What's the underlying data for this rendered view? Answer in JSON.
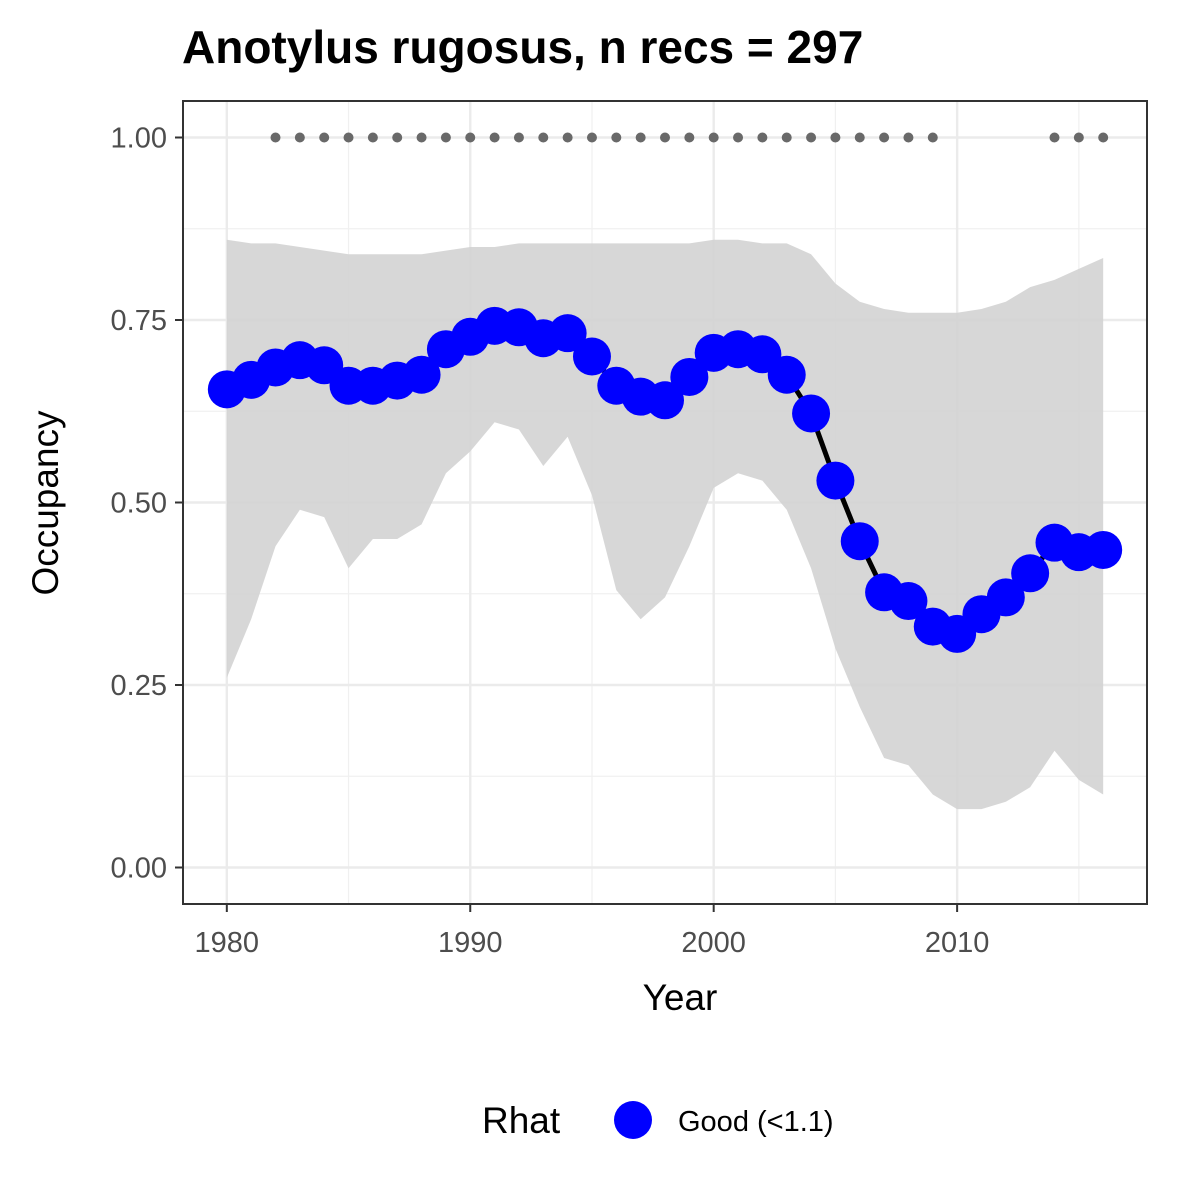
{
  "chart_data": {
    "type": "line",
    "title": "Anotylus rugosus, n recs = 297",
    "xlabel": "Year",
    "ylabel": "Occupancy",
    "xlim": [
      1978.2,
      2017.8
    ],
    "ylim": [
      -0.05,
      1.05
    ],
    "x_ticks": [
      1980,
      1990,
      2000,
      2010
    ],
    "x_tick_labels": [
      "1980",
      "1990",
      "2000",
      "2010"
    ],
    "y_ticks": [
      0,
      0.25,
      0.5,
      0.75,
      1.0
    ],
    "y_tick_labels": [
      "0.00",
      "0.25",
      "0.50",
      "0.75",
      "1.00"
    ],
    "grid": true,
    "x": [
      1980,
      1981,
      1982,
      1983,
      1984,
      1985,
      1986,
      1987,
      1988,
      1989,
      1990,
      1991,
      1992,
      1993,
      1994,
      1995,
      1996,
      1997,
      1998,
      1999,
      2000,
      2001,
      2002,
      2003,
      2004,
      2005,
      2006,
      2007,
      2008,
      2009,
      2010,
      2011,
      2012,
      2013,
      2014,
      2015,
      2016
    ],
    "series": [
      {
        "type": "ribbon",
        "lower": [
          0.26,
          0.34,
          0.44,
          0.49,
          0.48,
          0.41,
          0.45,
          0.45,
          0.47,
          0.54,
          0.57,
          0.61,
          0.6,
          0.55,
          0.59,
          0.51,
          0.38,
          0.34,
          0.37,
          0.44,
          0.52,
          0.54,
          0.53,
          0.49,
          0.41,
          0.3,
          0.22,
          0.15,
          0.14,
          0.1,
          0.08,
          0.08,
          0.09,
          0.11,
          0.16,
          0.12,
          0.1
        ],
        "upper": [
          0.86,
          0.855,
          0.855,
          0.85,
          0.845,
          0.84,
          0.84,
          0.84,
          0.84,
          0.845,
          0.85,
          0.85,
          0.855,
          0.855,
          0.855,
          0.855,
          0.855,
          0.855,
          0.855,
          0.855,
          0.86,
          0.86,
          0.855,
          0.855,
          0.84,
          0.8,
          0.775,
          0.765,
          0.76,
          0.76,
          0.76,
          0.765,
          0.775,
          0.795,
          0.805,
          0.82,
          0.835
        ],
        "color": "#d3d3d3"
      },
      {
        "type": "line",
        "values": [
          0.655,
          0.668,
          0.685,
          0.695,
          0.688,
          0.66,
          0.66,
          0.667,
          0.675,
          0.71,
          0.727,
          0.742,
          0.74,
          0.725,
          0.732,
          0.7,
          0.66,
          0.645,
          0.64,
          0.672,
          0.705,
          0.71,
          0.703,
          0.675,
          0.622,
          0.53,
          0.447,
          0.377,
          0.365,
          0.33,
          0.32,
          0.347,
          0.37,
          0.403,
          0.445,
          0.432,
          0.435
        ],
        "line_color": "#000000",
        "point_color": "#0000ff",
        "name": "Good (<1.1)"
      },
      {
        "type": "points",
        "x": [
          1982,
          1983,
          1984,
          1985,
          1986,
          1987,
          1988,
          1989,
          1990,
          1991,
          1992,
          1993,
          1994,
          1995,
          1996,
          1997,
          1998,
          1999,
          2000,
          2001,
          2002,
          2003,
          2004,
          2005,
          2006,
          2007,
          2008,
          2009,
          2014,
          2015,
          2016
        ],
        "values": [
          1,
          1,
          1,
          1,
          1,
          1,
          1,
          1,
          1,
          1,
          1,
          1,
          1,
          1,
          1,
          1,
          1,
          1,
          1,
          1,
          1,
          1,
          1,
          1,
          1,
          1,
          1,
          1,
          1,
          1,
          1
        ],
        "color": "#696969"
      }
    ],
    "legend": {
      "title": "Rhat",
      "position": "bottom",
      "items": [
        {
          "label": "Good (<1.1)",
          "color": "#0000ff"
        }
      ]
    }
  }
}
